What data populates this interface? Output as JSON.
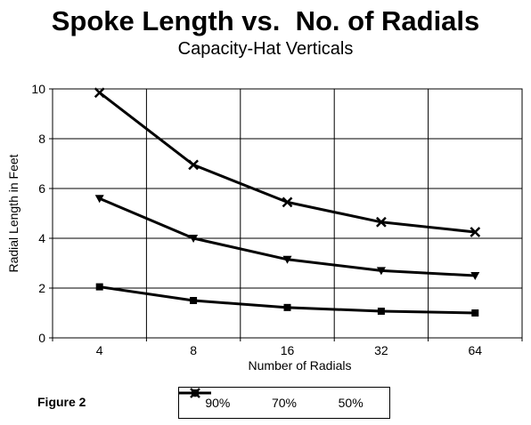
{
  "figure_label": "Figure 2",
  "chart_data": {
    "type": "line",
    "title": "Spoke Length vs.  No. of Radials",
    "subtitle": "Capacity-Hat Verticals",
    "xlabel": "Number of Radials",
    "ylabel": "Radial Length in Feet",
    "categories": [
      "4",
      "8",
      "16",
      "32",
      "64"
    ],
    "ylim": [
      0,
      10
    ],
    "yticks": [
      0,
      2,
      4,
      6,
      8,
      10
    ],
    "grid": true,
    "legend_position": "bottom",
    "series": [
      {
        "name": "90%",
        "marker": "square",
        "values": [
          2.05,
          1.5,
          1.22,
          1.07,
          1.0
        ]
      },
      {
        "name": "70%",
        "marker": "triangle-down",
        "values": [
          5.6,
          4.0,
          3.15,
          2.7,
          2.5
        ]
      },
      {
        "name": "50%",
        "marker": "x",
        "values": [
          9.85,
          6.95,
          5.45,
          4.65,
          4.25
        ]
      }
    ],
    "line_color": "#000000"
  }
}
